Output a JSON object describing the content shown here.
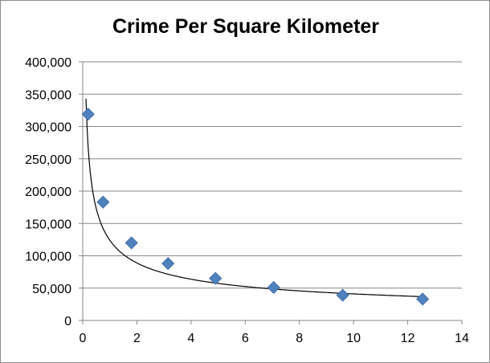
{
  "chart_data": {
    "type": "scatter",
    "title": "Crime Per Square Kilometer",
    "xlabel": "",
    "ylabel": "",
    "xlim": [
      0,
      14
    ],
    "ylim": [
      0,
      400000
    ],
    "x_ticks": [
      0,
      2,
      4,
      6,
      8,
      10,
      12,
      14
    ],
    "y_ticks": [
      0,
      50000,
      100000,
      150000,
      200000,
      250000,
      300000,
      350000,
      400000
    ],
    "x_tick_labels": [
      "0",
      "2",
      "4",
      "6",
      "8",
      "10",
      "12",
      "14"
    ],
    "y_tick_labels": [
      "0",
      "50,000",
      "100,000",
      "150,000",
      "200,000",
      "250,000",
      "300,000",
      "350,000",
      "400,000"
    ],
    "grid": "horizontal",
    "legend": "none",
    "marker": "diamond",
    "marker_color": "#4f81bd",
    "trendline": {
      "type": "power",
      "color": "#000000",
      "coefficient": 124000,
      "exponent": -0.48
    },
    "series": [
      {
        "x": [
          0.2,
          0.75,
          1.8,
          3.15,
          4.9,
          7.05,
          9.6,
          12.55
        ],
        "y": [
          319000,
          183000,
          120000,
          88000,
          65000,
          51000,
          39000,
          33000
        ]
      }
    ]
  }
}
